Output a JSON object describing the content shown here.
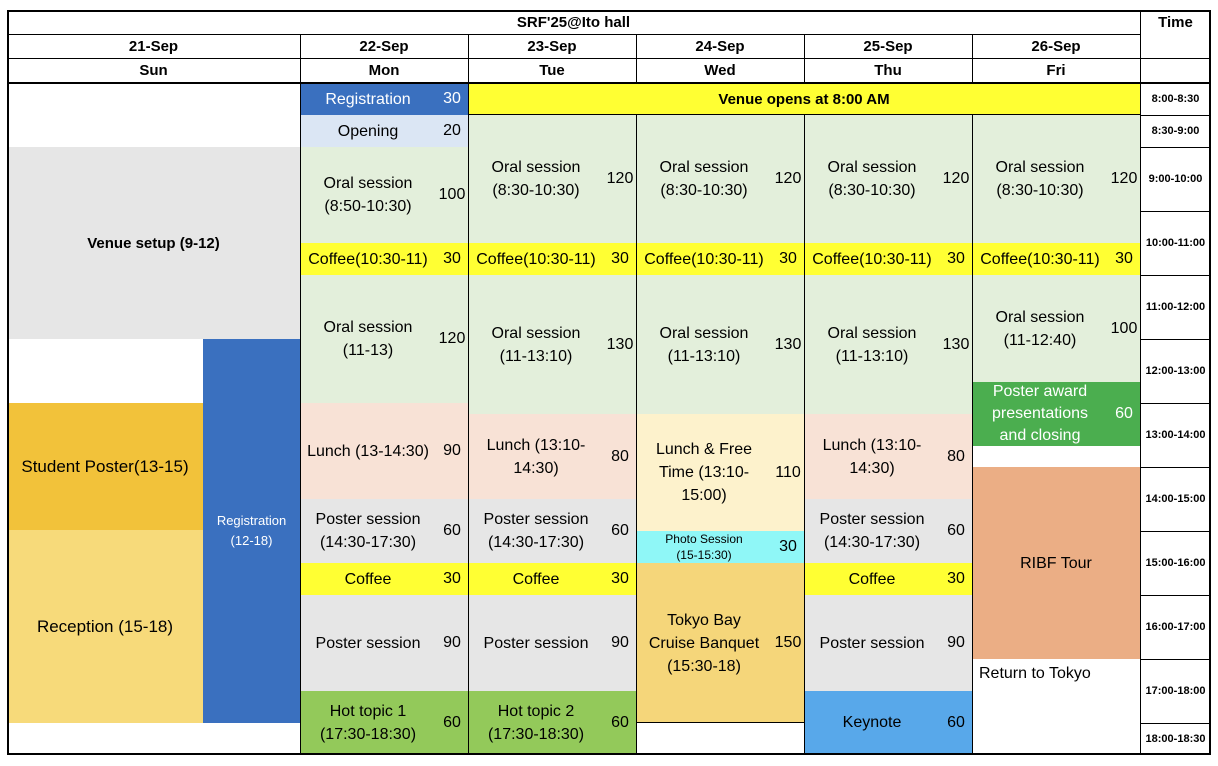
{
  "title": "SRF'25@Ito hall",
  "time_header": "Time",
  "days": [
    {
      "date": "21-Sep",
      "dow": "Sun"
    },
    {
      "date": "22-Sep",
      "dow": "Mon"
    },
    {
      "date": "23-Sep",
      "dow": "Tue"
    },
    {
      "date": "24-Sep",
      "dow": "Wed"
    },
    {
      "date": "25-Sep",
      "dow": "Thu"
    },
    {
      "date": "26-Sep",
      "dow": "Fri"
    }
  ],
  "times": [
    "8:00-8:30",
    "8:30-9:00",
    "9:00-10:00",
    "10:00-11:00",
    "11:00-12:00",
    "12:00-13:00",
    "13:00-14:00",
    "14:00-15:00",
    "15:00-16:00",
    "16:00-17:00",
    "17:00-18:00",
    "18:00-18:30"
  ],
  "sun": {
    "venue_setup": "Venue setup (9-12)",
    "student_poster": "Student Poster(13-15)",
    "reception": "Reception (15-18)",
    "registration": "Registration\n(12-18)"
  },
  "venue_opens": "Venue opens at 8:00 AM",
  "mon": {
    "registration": {
      "label": "Registration",
      "min": "30"
    },
    "opening": {
      "label": "Opening",
      "min": "20"
    },
    "oral1": {
      "label": "Oral session\n(8:50-10:30)",
      "min": "100"
    },
    "coffee1": {
      "label": "Coffee(10:30-11)",
      "min": "30"
    },
    "oral2": {
      "label": "Oral session\n(11-13)",
      "min": "120"
    },
    "lunch": {
      "label": "Lunch (13-14:30)",
      "min": "90"
    },
    "poster1": {
      "label": "Poster session\n(14:30-17:30)",
      "min": "60"
    },
    "coffee2": {
      "label": "Coffee",
      "min": "30"
    },
    "poster2": {
      "label": "Poster session",
      "min": "90"
    },
    "hot": {
      "label": "Hot topic 1\n(17:30-18:30)",
      "min": "60"
    }
  },
  "tue": {
    "oral1": {
      "label": "Oral session\n(8:30-10:30)",
      "min": "120"
    },
    "coffee1": {
      "label": "Coffee(10:30-11)",
      "min": "30"
    },
    "oral2": {
      "label": "Oral session\n(11-13:10)",
      "min": "130"
    },
    "lunch": {
      "label": "Lunch (13:10-\n14:30)",
      "min": "80"
    },
    "poster1": {
      "label": "Poster session\n(14:30-17:30)",
      "min": "60"
    },
    "coffee2": {
      "label": "Coffee",
      "min": "30"
    },
    "poster2": {
      "label": "Poster session",
      "min": "90"
    },
    "hot": {
      "label": "Hot topic 2\n(17:30-18:30)",
      "min": "60"
    }
  },
  "wed": {
    "oral1": {
      "label": "Oral session\n(8:30-10:30)",
      "min": "120"
    },
    "coffee1": {
      "label": "Coffee(10:30-11)",
      "min": "30"
    },
    "oral2": {
      "label": "Oral session\n(11-13:10)",
      "min": "130"
    },
    "lunch": {
      "label": "Lunch & Free\nTime (13:10-\n15:00)",
      "min": "110"
    },
    "photo": {
      "label": "Photo Session\n(15-15:30)",
      "min": "30"
    },
    "cruise": {
      "label": "Tokyo Bay\nCruise Banquet\n(15:30-18)",
      "min": "150"
    }
  },
  "thu": {
    "oral1": {
      "label": "Oral session\n(8:30-10:30)",
      "min": "120"
    },
    "coffee1": {
      "label": "Coffee(10:30-11)",
      "min": "30"
    },
    "oral2": {
      "label": "Oral session\n(11-13:10)",
      "min": "130"
    },
    "lunch": {
      "label": "Lunch (13:10-\n14:30)",
      "min": "80"
    },
    "poster1": {
      "label": "Poster session\n(14:30-17:30)",
      "min": "60"
    },
    "coffee2": {
      "label": "Coffee",
      "min": "30"
    },
    "poster2": {
      "label": "Poster session",
      "min": "90"
    },
    "keynote": {
      "label": "Keynote",
      "min": "60"
    }
  },
  "fri": {
    "oral1": {
      "label": "Oral session\n(8:30-10:30)",
      "min": "120"
    },
    "coffee1": {
      "label": "Coffee(10:30-11)",
      "min": "30"
    },
    "oral2": {
      "label": "Oral session\n(11-12:40)",
      "min": "100"
    },
    "award": {
      "label": "Poster award\npresentations\nand closing",
      "min": "60"
    },
    "ribf": "RIBF Tour",
    "return": "Return to Tokyo"
  },
  "colors": {
    "blue": "#3a70bf",
    "light_blue": "#dbe6f4",
    "yellow": "#ffff33",
    "green_light": "#e3efdb",
    "grey": "#e6e6e6",
    "peach": "#f8e2d6",
    "cream": "#fdf2cc",
    "cyan": "#8ff7f7",
    "gold": "#f5d67a",
    "green": "#93c95a",
    "sky": "#58a8ea",
    "orange_dark": "#f2c23a",
    "orange_light": "#f7da7a",
    "award_green": "#4bae4f",
    "ribf": "#ebae85"
  }
}
